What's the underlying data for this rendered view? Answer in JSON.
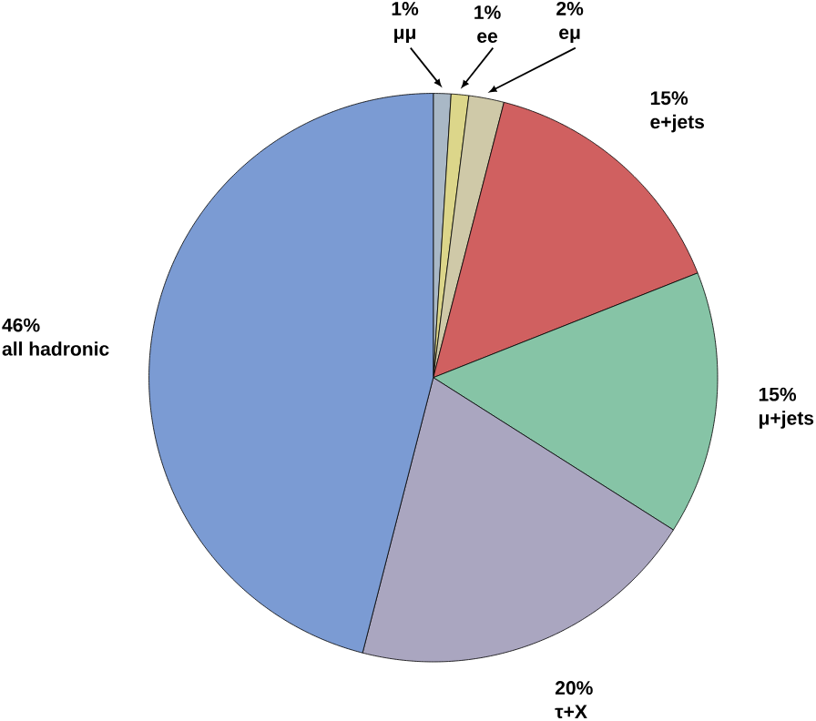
{
  "chart_data": {
    "type": "pie",
    "categories": [
      "μμ",
      "ee",
      "eμ",
      "e+jets",
      "μ+jets",
      "τ+X",
      "all hadronic"
    ],
    "values": [
      1,
      1,
      2,
      15,
      15,
      20,
      46
    ],
    "value_labels": [
      "1%",
      "1%",
      "2%",
      "15%",
      "15%",
      "20%",
      "46%"
    ],
    "colors": [
      "#a9b8c6",
      "#dcd68a",
      "#cfc9a8",
      "#d06060",
      "#86c4a6",
      "#aaa6c0",
      "#7b9bd3"
    ]
  }
}
